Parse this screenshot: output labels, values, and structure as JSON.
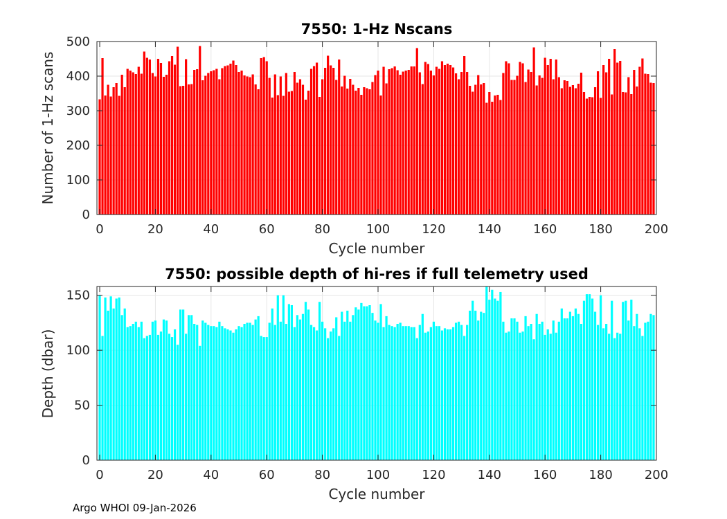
{
  "footer": "Argo WHOI 09-Jan-2026",
  "chart_data": [
    {
      "type": "bar",
      "title": "7550: 1-Hz Nscans",
      "xlabel": "Cycle number",
      "ylabel": "Number of 1-Hz scans",
      "xlim": [
        -1,
        200
      ],
      "ylim": [
        0,
        500
      ],
      "xticks": [
        "0",
        "20",
        "40",
        "60",
        "80",
        "100",
        "120",
        "140",
        "160",
        "180",
        "200"
      ],
      "yticks": [
        "0",
        "100",
        "200",
        "300",
        "400",
        "500"
      ],
      "grid": true,
      "color": "#ff0000",
      "x": [
        0,
        1,
        2,
        3,
        4,
        5,
        6,
        7,
        8,
        9,
        10,
        11,
        12,
        13,
        14,
        15,
        16,
        17,
        18,
        19,
        20,
        21,
        22,
        23,
        24,
        25,
        26,
        27,
        28,
        29,
        30,
        31,
        32,
        33,
        34,
        35,
        36,
        37,
        38,
        39,
        40,
        41,
        42,
        43,
        44,
        45,
        46,
        47,
        48,
        49,
        50,
        51,
        52,
        53,
        54,
        55,
        56,
        57,
        58,
        59,
        60,
        61,
        62,
        63,
        64,
        65,
        66,
        67,
        68,
        69,
        70,
        71,
        72,
        73,
        74,
        75,
        76,
        77,
        78,
        79,
        80,
        81,
        82,
        83,
        84,
        85,
        86,
        87,
        88,
        89,
        90,
        91,
        92,
        93,
        94,
        95,
        96,
        97,
        98,
        99,
        100,
        101,
        102,
        103,
        104,
        105,
        106,
        107,
        108,
        109,
        110,
        111,
        112,
        113,
        114,
        115,
        116,
        117,
        118,
        119,
        120,
        121,
        122,
        123,
        124,
        125,
        126,
        127,
        128,
        129,
        130,
        131,
        132,
        133,
        134,
        135,
        136,
        137,
        138,
        139,
        140,
        141,
        142,
        143,
        144,
        145,
        146,
        147,
        148,
        149,
        150,
        151,
        152,
        153,
        154,
        155,
        156,
        157,
        158,
        159,
        160,
        161,
        162,
        163,
        164,
        165,
        166,
        167,
        168,
        169,
        170,
        171,
        172,
        173,
        174,
        175,
        176,
        177,
        178,
        179,
        180,
        181,
        182,
        183,
        184,
        185,
        186,
        187,
        188,
        189,
        190,
        191,
        192,
        193,
        194,
        195,
        196,
        197,
        198,
        199
      ],
      "values": [
        333,
        452,
        344,
        375,
        341,
        368,
        380,
        343,
        404,
        368,
        421,
        416,
        411,
        406,
        427,
        407,
        471,
        453,
        448,
        409,
        399,
        450,
        438,
        398,
        404,
        443,
        458,
        433,
        485,
        371,
        372,
        449,
        376,
        377,
        418,
        420,
        487,
        388,
        401,
        409,
        414,
        417,
        421,
        391,
        423,
        429,
        431,
        436,
        445,
        432,
        412,
        416,
        402,
        399,
        397,
        405,
        376,
        362,
        452,
        455,
        443,
        395,
        338,
        405,
        345,
        399,
        343,
        409,
        355,
        357,
        412,
        381,
        391,
        375,
        332,
        358,
        421,
        429,
        439,
        340,
        391,
        424,
        459,
        431,
        424,
        389,
        448,
        370,
        401,
        364,
        392,
        375,
        358,
        366,
        346,
        368,
        365,
        362,
        383,
        403,
        416,
        344,
        427,
        379,
        420,
        423,
        428,
        417,
        404,
        413,
        416,
        418,
        428,
        428,
        481,
        411,
        377,
        441,
        435,
        416,
        402,
        427,
        421,
        443,
        432,
        436,
        432,
        425,
        408,
        391,
        412,
        458,
        412,
        372,
        355,
        375,
        403,
        376,
        380,
        323,
        354,
        326,
        344,
        346,
        331,
        409,
        443,
        437,
        389,
        389,
        401,
        441,
        437,
        383,
        419,
        412,
        483,
        373,
        402,
        395,
        453,
        432,
        450,
        391,
        448,
        397,
        365,
        388,
        386,
        369,
        374,
        365,
        378,
        410,
        354,
        335,
        340,
        339,
        368,
        414,
        337,
        432,
        411,
        450,
        347,
        478,
        439,
        444,
        354,
        353,
        397,
        348,
        418,
        370,
        427,
        451,
        407,
        406,
        381,
        380
      ]
    },
    {
      "type": "bar",
      "title": "7550: possible depth of hi-res if full telemetry used",
      "xlabel": "Cycle number",
      "ylabel": "Depth (dbar)",
      "xlim": [
        -1,
        200
      ],
      "ylim": [
        0,
        158
      ],
      "xticks": [
        "0",
        "20",
        "40",
        "60",
        "80",
        "100",
        "120",
        "140",
        "160",
        "180",
        "200"
      ],
      "yticks": [
        "0",
        "50",
        "100",
        "150"
      ],
      "grid": true,
      "color": "#00ffff",
      "x": [
        0,
        1,
        2,
        3,
        4,
        5,
        6,
        7,
        8,
        9,
        10,
        11,
        12,
        13,
        14,
        15,
        16,
        17,
        18,
        19,
        20,
        21,
        22,
        23,
        24,
        25,
        26,
        27,
        28,
        29,
        30,
        31,
        32,
        33,
        34,
        35,
        36,
        37,
        38,
        39,
        40,
        41,
        42,
        43,
        44,
        45,
        46,
        47,
        48,
        49,
        50,
        51,
        52,
        53,
        54,
        55,
        56,
        57,
        58,
        59,
        60,
        61,
        62,
        63,
        64,
        65,
        66,
        67,
        68,
        69,
        70,
        71,
        72,
        73,
        74,
        75,
        76,
        77,
        78,
        79,
        80,
        81,
        82,
        83,
        84,
        85,
        86,
        87,
        88,
        89,
        90,
        91,
        92,
        93,
        94,
        95,
        96,
        97,
        98,
        99,
        100,
        101,
        102,
        103,
        104,
        105,
        106,
        107,
        108,
        109,
        110,
        111,
        112,
        113,
        114,
        115,
        116,
        117,
        118,
        119,
        120,
        121,
        122,
        123,
        124,
        125,
        126,
        127,
        128,
        129,
        130,
        131,
        132,
        133,
        134,
        135,
        136,
        137,
        138,
        139,
        140,
        141,
        142,
        143,
        144,
        145,
        146,
        147,
        148,
        149,
        150,
        151,
        152,
        153,
        154,
        155,
        156,
        157,
        158,
        159,
        160,
        161,
        162,
        163,
        164,
        165,
        166,
        167,
        168,
        169,
        170,
        171,
        172,
        173,
        174,
        175,
        176,
        177,
        178,
        179,
        180,
        181,
        182,
        183,
        184,
        185,
        186,
        187,
        188,
        189,
        190,
        191,
        192,
        193,
        194,
        195,
        196,
        197,
        198,
        199
      ],
      "values": [
        150,
        113,
        148,
        136,
        149,
        138,
        147,
        148,
        132,
        138,
        121,
        122,
        124,
        126,
        121,
        126,
        111,
        113,
        114,
        126,
        127,
        114,
        117,
        128,
        127,
        115,
        112,
        119,
        105,
        137,
        137,
        115,
        132,
        132,
        124,
        123,
        104,
        127,
        125,
        123,
        122,
        122,
        121,
        126,
        122,
        120,
        119,
        118,
        116,
        119,
        122,
        121,
        124,
        125,
        125,
        123,
        128,
        131,
        113,
        112,
        112,
        125,
        138,
        123,
        150,
        126,
        150,
        124,
        142,
        141,
        121,
        132,
        128,
        133,
        144,
        137,
        123,
        121,
        118,
        144,
        126,
        120,
        111,
        117,
        120,
        130,
        113,
        135,
        126,
        136,
        126,
        132,
        139,
        137,
        143,
        140,
        140,
        141,
        134,
        127,
        125,
        142,
        121,
        131,
        123,
        122,
        121,
        124,
        125,
        122,
        122,
        122,
        121,
        121,
        111,
        123,
        133,
        116,
        117,
        121,
        126,
        122,
        122,
        118,
        120,
        119,
        119,
        121,
        125,
        126,
        123,
        113,
        123,
        136,
        145,
        136,
        127,
        135,
        134,
        158,
        146,
        155,
        147,
        145,
        153,
        126,
        116,
        117,
        129,
        129,
        126,
        116,
        117,
        131,
        122,
        124,
        110,
        133,
        124,
        126,
        114,
        119,
        115,
        127,
        116,
        126,
        138,
        129,
        129,
        135,
        131,
        138,
        133,
        124,
        145,
        151,
        151,
        147,
        135,
        123,
        150,
        120,
        124,
        115,
        145,
        111,
        116,
        115,
        144,
        145,
        127,
        146,
        122,
        133,
        120,
        113,
        125,
        126,
        133,
        132
      ]
    }
  ]
}
